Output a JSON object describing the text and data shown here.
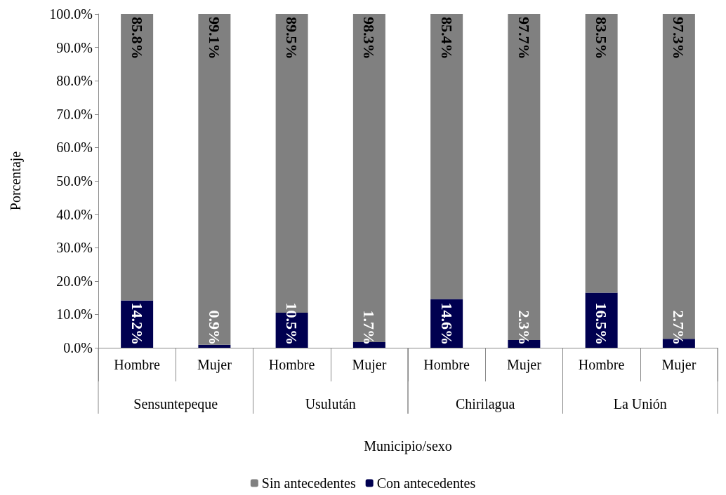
{
  "chart_data": {
    "type": "bar",
    "stacked": true,
    "xlabel": "Municipio/sexo",
    "ylabel": "Porcentaje",
    "categories": [
      "Hombre",
      "Mujer",
      "Hombre",
      "Mujer",
      "Hombre",
      "Mujer",
      "Hombre",
      "Mujer"
    ],
    "annotations": [
      "Sensuntepeque",
      "Usulután",
      "Chirilagua",
      "La Unión"
    ],
    "series": [
      {
        "name": "Con antecedentes",
        "color": "#000050",
        "values": [
          14.2,
          0.9,
          10.5,
          1.7,
          14.6,
          2.3,
          16.5,
          2.7
        ],
        "value_labels": [
          "14.2%",
          "0.9%",
          "10.5%",
          "1.7%",
          "14.6%",
          "2.3%",
          "16.5%",
          "2.7%"
        ]
      },
      {
        "name": "Sin antecedentes",
        "color": "#808080",
        "values": [
          85.8,
          99.1,
          89.5,
          98.3,
          85.4,
          97.7,
          83.5,
          97.3
        ],
        "value_labels": [
          "85.8%",
          "99.1%",
          "89.5%",
          "98.3%",
          "85.4%",
          "97.7%",
          "83.5%",
          "97.3%"
        ]
      }
    ],
    "ylim": [
      0,
      100
    ],
    "yticks": [
      {
        "value": 0,
        "label": "0.0%"
      },
      {
        "value": 10,
        "label": "10.0%"
      },
      {
        "value": 20,
        "label": "20.0%"
      },
      {
        "value": 30,
        "label": "30.0%"
      },
      {
        "value": 40,
        "label": "40.0%"
      },
      {
        "value": 50,
        "label": "50.0%"
      },
      {
        "value": 60,
        "label": "60.0%"
      },
      {
        "value": 70,
        "label": "70.0%"
      },
      {
        "value": 80,
        "label": "80.0%"
      },
      {
        "value": 90,
        "label": "90.0%"
      },
      {
        "value": 100,
        "label": "100.0%"
      }
    ],
    "grid": false,
    "legend": "bottom"
  }
}
